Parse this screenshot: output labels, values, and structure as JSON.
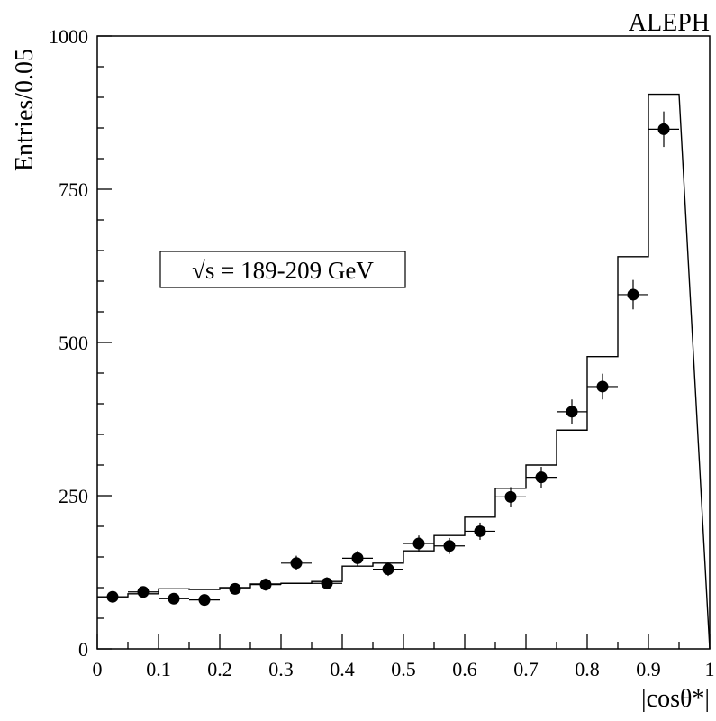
{
  "chart_data": {
    "type": "histogram",
    "experiment_label": "ALEPH",
    "xlabel": "|cosθ*|",
    "ylabel": "Entries/0.05",
    "annotation": "√s = 189-209 GeV",
    "xlim": [
      0,
      1
    ],
    "ylim": [
      0,
      1000
    ],
    "x_ticks": [
      0,
      0.1,
      0.2,
      0.3,
      0.4,
      0.5,
      0.6,
      0.7,
      0.8,
      0.9,
      1
    ],
    "x_tick_labels": [
      "0",
      "0.1",
      "0.2",
      "0.3",
      "0.4",
      "0.5",
      "0.6",
      "0.7",
      "0.8",
      "0.9",
      "1"
    ],
    "y_ticks": [
      0,
      250,
      500,
      750,
      1000
    ],
    "y_tick_labels": [
      "0",
      "250",
      "500",
      "750",
      "1000"
    ],
    "bin_edges": [
      0,
      0.05,
      0.1,
      0.15,
      0.2,
      0.25,
      0.3,
      0.35,
      0.4,
      0.45,
      0.5,
      0.55,
      0.6,
      0.65,
      0.7,
      0.75,
      0.8,
      0.85,
      0.9,
      0.95
    ],
    "series": [
      {
        "style": "histogram",
        "values": [
          85,
          90,
          98,
          97,
          100,
          106,
          107,
          110,
          135,
          140,
          160,
          185,
          215,
          262,
          300,
          357,
          477,
          640,
          905
        ]
      },
      {
        "style": "points-with-errors",
        "x": [
          0.025,
          0.075,
          0.125,
          0.175,
          0.225,
          0.275,
          0.325,
          0.375,
          0.425,
          0.475,
          0.525,
          0.575,
          0.625,
          0.675,
          0.725,
          0.775,
          0.825,
          0.875,
          0.925
        ],
        "y": [
          85,
          93,
          82,
          80,
          98,
          105,
          140,
          107,
          148,
          130,
          172,
          168,
          192,
          248,
          280,
          387,
          428,
          578,
          848
        ],
        "yerr": [
          9,
          9,
          9,
          9,
          9,
          10,
          12,
          10,
          12,
          11,
          13,
          13,
          14,
          16,
          17,
          20,
          21,
          24,
          29
        ],
        "xerr": 0.025
      }
    ]
  }
}
